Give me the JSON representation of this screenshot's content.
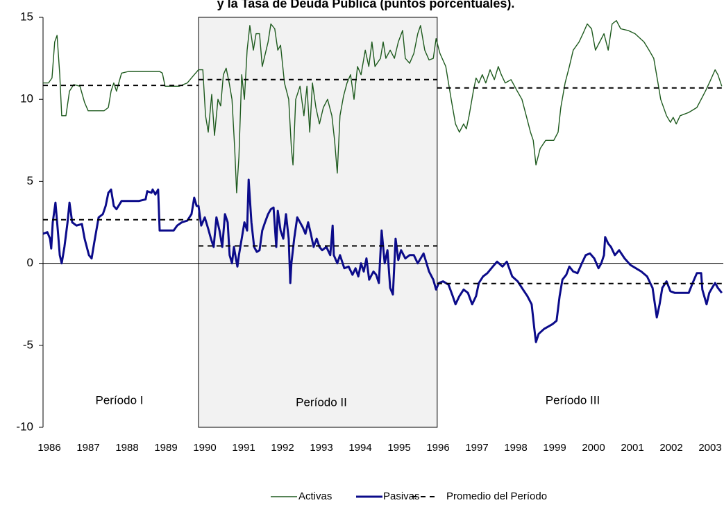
{
  "chart_data": {
    "type": "line",
    "title": "y la Tasa de Deuda Pública (puntos porcentuales).",
    "xlim": [
      1986,
      2003.5
    ],
    "xticks": [
      1986,
      1987,
      1988,
      1989,
      1990,
      1991,
      1992,
      1993,
      1994,
      1995,
      1996,
      1997,
      1998,
      1999,
      2000,
      2001,
      2002,
      2003
    ],
    "ylim": [
      -10,
      15
    ],
    "yticks": [
      -10,
      -5,
      0,
      5,
      10,
      15
    ],
    "grid": false,
    "legend": "bottom",
    "shaded_xrange": [
      1990,
      1996.14
    ],
    "annotations": [
      "Período I",
      "Período II",
      "Período III"
    ],
    "series": [
      {
        "name": "Activas",
        "color": "#1e5a1e",
        "style": "thin",
        "x": [
          1986.0,
          1986.14,
          1986.23,
          1986.3,
          1986.36,
          1986.43,
          1986.48,
          1986.59,
          1986.68,
          1986.79,
          1986.95,
          1987.07,
          1987.16,
          1987.57,
          1987.68,
          1987.75,
          1987.82,
          1987.89,
          1988.02,
          1988.2,
          1989.0,
          1989.07,
          1989.14,
          1989.5,
          1989.71,
          1989.89,
          1990.0,
          1990.11,
          1990.18,
          1990.25,
          1990.34,
          1990.41,
          1990.5,
          1990.57,
          1990.64,
          1990.71,
          1990.79,
          1990.86,
          1990.93,
          1990.98,
          1991.04,
          1991.11,
          1991.18,
          1991.25,
          1991.32,
          1991.41,
          1991.48,
          1991.57,
          1991.64,
          1991.79,
          1991.86,
          1991.96,
          1992.04,
          1992.11,
          1992.21,
          1992.32,
          1992.39,
          1992.43,
          1992.5,
          1992.61,
          1992.71,
          1992.79,
          1992.86,
          1992.93,
          1993.02,
          1993.11,
          1993.21,
          1993.32,
          1993.43,
          1993.5,
          1993.57,
          1993.64,
          1993.73,
          1993.82,
          1993.91,
          1994.0,
          1994.09,
          1994.18,
          1994.29,
          1994.38,
          1994.46,
          1994.54,
          1994.68,
          1994.75,
          1994.82,
          1994.93,
          1995.04,
          1995.14,
          1995.25,
          1995.32,
          1995.43,
          1995.54,
          1995.64,
          1995.71,
          1995.82,
          1995.93,
          1996.04,
          1996.11,
          1996.21,
          1996.36,
          1996.5,
          1996.61,
          1996.71,
          1996.82,
          1996.89,
          1996.96,
          1997.07,
          1997.14,
          1997.21,
          1997.3,
          1997.39,
          1997.5,
          1997.61,
          1997.71,
          1997.79,
          1997.89,
          1998.04,
          1998.2,
          1998.32,
          1998.43,
          1998.54,
          1998.61,
          1998.68,
          1998.79,
          1998.93,
          1999.14,
          1999.25,
          1999.32,
          1999.43,
          1999.54,
          1999.64,
          1999.79,
          1999.89,
          2000.0,
          2000.11,
          2000.21,
          2000.32,
          2000.43,
          2000.54,
          2000.64,
          2000.75,
          2000.86,
          2001.05,
          2001.23,
          2001.46,
          2001.59,
          2001.71,
          2001.82,
          2001.89,
          2002.04,
          2002.14,
          2002.21,
          2002.29,
          2002.39,
          2002.61,
          2002.82,
          2002.93,
          2003.04,
          2003.14,
          2003.29,
          2003.36,
          2003.46
        ],
        "values": [
          11.0,
          11.0,
          11.3,
          13.5,
          13.9,
          11.5,
          9.0,
          9.0,
          10.5,
          10.9,
          10.8,
          9.8,
          9.3,
          9.3,
          9.5,
          10.5,
          11.0,
          10.5,
          11.6,
          11.7,
          11.7,
          11.6,
          10.8,
          10.8,
          11.0,
          11.5,
          11.8,
          11.8,
          9.0,
          8.0,
          10.3,
          7.8,
          10.0,
          9.6,
          11.5,
          11.9,
          11.0,
          10.0,
          7.0,
          4.3,
          6.5,
          11.5,
          10.0,
          13.0,
          14.5,
          13.0,
          14.0,
          14.0,
          12.0,
          13.5,
          14.6,
          14.3,
          13.0,
          13.3,
          11.0,
          10.0,
          7.0,
          6.0,
          10.0,
          10.8,
          9.0,
          10.8,
          8.0,
          11.0,
          9.5,
          8.5,
          9.5,
          10.0,
          9.0,
          7.5,
          5.5,
          9.0,
          10.2,
          11.0,
          11.5,
          10.0,
          12.0,
          11.5,
          13.0,
          12.0,
          13.5,
          12.0,
          12.5,
          13.5,
          12.5,
          13.0,
          12.5,
          13.5,
          14.2,
          12.5,
          12.2,
          12.8,
          14.0,
          14.5,
          13.0,
          12.4,
          12.5,
          13.7,
          12.8,
          12.0,
          10.0,
          8.5,
          8.0,
          8.5,
          8.2,
          9.0,
          10.5,
          11.3,
          11.0,
          11.5,
          11.0,
          11.8,
          11.2,
          12.0,
          11.5,
          11.0,
          11.2,
          10.5,
          10.0,
          9.0,
          8.0,
          7.5,
          6.0,
          7.0,
          7.5,
          7.5,
          8.0,
          9.5,
          11.0,
          12.0,
          13.0,
          13.5,
          14.0,
          14.6,
          14.3,
          13.0,
          13.5,
          14.0,
          13.0,
          14.6,
          14.8,
          14.3,
          14.2,
          14.0,
          13.5,
          13.0,
          12.5,
          11.0,
          10.0,
          9.0,
          8.6,
          8.9,
          8.5,
          9.0,
          9.2,
          9.5,
          10.0,
          10.5,
          11.0,
          11.8,
          11.5,
          10.8
        ]
      },
      {
        "name": "Pasivas",
        "color": "#0b0b8a",
        "style": "thick",
        "x": [
          1986.0,
          1986.11,
          1986.18,
          1986.21,
          1986.25,
          1986.32,
          1986.38,
          1986.43,
          1986.48,
          1986.55,
          1986.63,
          1986.68,
          1986.75,
          1986.86,
          1987.0,
          1987.07,
          1987.18,
          1987.25,
          1987.32,
          1987.43,
          1987.54,
          1987.61,
          1987.68,
          1987.75,
          1987.82,
          1987.89,
          1988.02,
          1988.46,
          1988.64,
          1988.68,
          1988.79,
          1988.82,
          1988.89,
          1988.96,
          1989.0,
          1989.36,
          1989.45,
          1989.57,
          1989.71,
          1989.82,
          1989.89,
          1989.95,
          1990.0,
          1990.07,
          1990.16,
          1990.25,
          1990.32,
          1990.39,
          1990.46,
          1990.54,
          1990.61,
          1990.68,
          1990.75,
          1990.8,
          1990.86,
          1990.91,
          1990.96,
          1991.0,
          1991.04,
          1991.11,
          1991.18,
          1991.25,
          1991.29,
          1991.36,
          1991.43,
          1991.5,
          1991.57,
          1991.64,
          1991.71,
          1991.79,
          1991.86,
          1991.93,
          1992.0,
          1992.04,
          1992.11,
          1992.18,
          1992.25,
          1992.32,
          1992.36,
          1992.39,
          1992.46,
          1992.54,
          1992.61,
          1992.68,
          1992.75,
          1992.82,
          1992.89,
          1992.96,
          1993.04,
          1993.11,
          1993.18,
          1993.29,
          1993.39,
          1993.45,
          1993.48,
          1993.57,
          1993.64,
          1993.75,
          1993.86,
          1993.96,
          1994.04,
          1994.11,
          1994.18,
          1994.25,
          1994.32,
          1994.39,
          1994.5,
          1994.57,
          1994.64,
          1994.71,
          1994.79,
          1994.86,
          1994.93,
          1995.0,
          1995.07,
          1995.14,
          1995.21,
          1995.32,
          1995.43,
          1995.54,
          1995.64,
          1995.79,
          1995.93,
          1996.04,
          1996.11,
          1996.18,
          1996.29,
          1996.43,
          1996.54,
          1996.61,
          1996.71,
          1996.82,
          1996.93,
          1997.04,
          1997.14,
          1997.21,
          1997.32,
          1997.43,
          1997.57,
          1997.68,
          1997.82,
          1997.93,
          1998.07,
          1998.21,
          1998.32,
          1998.46,
          1998.57,
          1998.64,
          1998.68,
          1998.75,
          1998.89,
          1999.04,
          1999.11,
          1999.21,
          1999.29,
          1999.36,
          1999.46,
          1999.54,
          1999.64,
          1999.75,
          1999.86,
          1999.96,
          2000.07,
          2000.18,
          2000.29,
          2000.36,
          2000.43,
          2000.46,
          2000.54,
          2000.61,
          2000.71,
          2000.82,
          2000.96,
          2001.11,
          2001.25,
          2001.39,
          2001.54,
          2001.68,
          2001.79,
          2001.86,
          2001.93,
          2002.04,
          2002.14,
          2002.25,
          2002.39,
          2002.61,
          2002.71,
          2002.82,
          2002.93,
          2002.96,
          2003.07,
          2003.14,
          2003.21,
          2003.29,
          2003.36,
          2003.46
        ],
        "values": [
          1.8,
          1.9,
          1.5,
          0.9,
          2.5,
          3.7,
          2.0,
          0.5,
          0.0,
          1.0,
          2.5,
          3.7,
          2.5,
          2.3,
          2.4,
          1.5,
          0.5,
          0.3,
          1.3,
          2.8,
          3.0,
          3.5,
          4.3,
          4.5,
          3.5,
          3.3,
          3.8,
          3.8,
          3.9,
          4.4,
          4.3,
          4.5,
          4.2,
          4.5,
          2.0,
          2.0,
          2.3,
          2.5,
          2.6,
          3.0,
          4.0,
          3.5,
          3.5,
          2.3,
          2.8,
          2.1,
          1.5,
          1.0,
          2.8,
          2.0,
          1.0,
          3.0,
          2.5,
          0.5,
          0.0,
          1.0,
          0.3,
          -0.2,
          0.5,
          1.5,
          2.5,
          2.0,
          5.1,
          2.5,
          1.0,
          0.7,
          0.8,
          2.0,
          2.5,
          3.0,
          3.3,
          3.4,
          1.0,
          3.2,
          2.0,
          1.5,
          3.0,
          1.5,
          -1.2,
          0.0,
          1.5,
          2.8,
          2.5,
          2.2,
          1.8,
          2.5,
          1.8,
          1.0,
          1.5,
          1.0,
          0.8,
          1.0,
          0.5,
          2.3,
          0.5,
          0.0,
          0.5,
          -0.3,
          -0.2,
          -0.7,
          -0.3,
          -0.8,
          0.0,
          -0.5,
          0.3,
          -1.0,
          -0.5,
          -0.7,
          -1.2,
          2.0,
          0.0,
          0.8,
          -1.5,
          -1.9,
          1.5,
          0.2,
          0.8,
          0.3,
          0.5,
          0.5,
          0.0,
          0.6,
          -0.5,
          -1.0,
          -1.6,
          -1.2,
          -1.1,
          -1.3,
          -2.0,
          -2.5,
          -2.0,
          -1.6,
          -1.8,
          -2.5,
          -2.0,
          -1.2,
          -0.8,
          -0.6,
          -0.2,
          0.1,
          -0.2,
          0.1,
          -0.8,
          -1.1,
          -1.5,
          -2.0,
          -2.5,
          -4.0,
          -4.8,
          -4.3,
          -4.0,
          -3.8,
          -3.7,
          -3.5,
          -2.0,
          -1.0,
          -0.7,
          -0.2,
          -0.5,
          -0.6,
          0.0,
          0.5,
          0.6,
          0.3,
          -0.3,
          0.0,
          0.5,
          1.6,
          1.2,
          1.0,
          0.5,
          0.8,
          0.3,
          -0.1,
          -0.3,
          -0.5,
          -0.8,
          -1.5,
          -3.3,
          -2.5,
          -1.5,
          -1.1,
          -1.7,
          -1.8,
          -1.8,
          -1.8,
          -1.2,
          -0.6,
          -0.6,
          -1.6,
          -2.5,
          -1.8,
          -1.5,
          -1.2,
          -1.5,
          -1.8
        ]
      },
      {
        "name": "Promedio del Período",
        "color": "#000000",
        "style": "dashed",
        "x": [
          1986,
          1990,
          1990,
          1990,
          1996.14,
          1996.14,
          1996.14,
          2003.5,
          2003.5,
          1986,
          1990,
          1990,
          1990,
          1996.14,
          1996.14,
          1996.14,
          2003.5
        ],
        "values": [
          10.85,
          10.85,
          null,
          11.2,
          11.2,
          null,
          10.7,
          10.7,
          null,
          2.66,
          2.66,
          null,
          1.06,
          1.06,
          null,
          -1.23,
          -1.23
        ]
      }
    ]
  }
}
